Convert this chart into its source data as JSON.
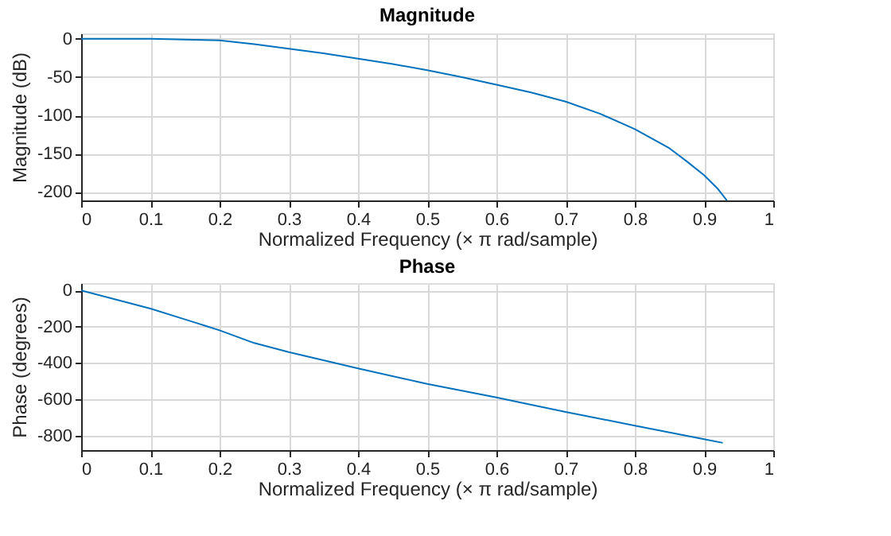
{
  "chart_data": [
    {
      "type": "line",
      "title": "Magnitude",
      "xlabel": "Normalized Frequency (× π rad/sample)",
      "ylabel": "Magnitude (dB)",
      "xlim": [
        0,
        1
      ],
      "xticks": [
        0,
        0.1,
        0.2,
        0.3,
        0.4,
        0.5,
        0.6,
        0.7,
        0.8,
        0.9,
        1
      ],
      "ylim": [
        -211,
        7
      ],
      "yticks": [
        -200,
        -150,
        -100,
        -50,
        0
      ],
      "grid": true,
      "x": [
        0,
        0.05,
        0.1,
        0.15,
        0.2,
        0.25,
        0.3,
        0.35,
        0.4,
        0.45,
        0.5,
        0.55,
        0.6,
        0.65,
        0.7,
        0.75,
        0.8,
        0.85,
        0.875,
        0.9,
        0.92,
        0.933
      ],
      "series": [
        {
          "color": "#0072bd",
          "values": [
            0,
            0,
            0,
            -1,
            -2,
            -7,
            -13,
            -19,
            -26,
            -33,
            -41,
            -50,
            -60,
            -70,
            -82,
            -98,
            -118,
            -143,
            -160,
            -178,
            -196,
            -211
          ]
        }
      ]
    },
    {
      "type": "line",
      "title": "Phase",
      "xlabel": "Normalized Frequency (× π rad/sample)",
      "ylabel": "Phase (degrees)",
      "xlim": [
        0,
        1
      ],
      "xticks": [
        0,
        0.1,
        0.2,
        0.3,
        0.4,
        0.5,
        0.6,
        0.7,
        0.8,
        0.9,
        1
      ],
      "ylim": [
        -880,
        40
      ],
      "yticks": [
        -800,
        -600,
        -400,
        -200,
        0
      ],
      "grid": true,
      "x": [
        0,
        0.1,
        0.15,
        0.2,
        0.25,
        0.3,
        0.4,
        0.5,
        0.6,
        0.7,
        0.8,
        0.9,
        0.927
      ],
      "series": [
        {
          "color": "#0072bd",
          "values": [
            0,
            -100,
            -160,
            -220,
            -290,
            -340,
            -430,
            -515,
            -590,
            -670,
            -745,
            -820,
            -840
          ]
        }
      ]
    }
  ]
}
